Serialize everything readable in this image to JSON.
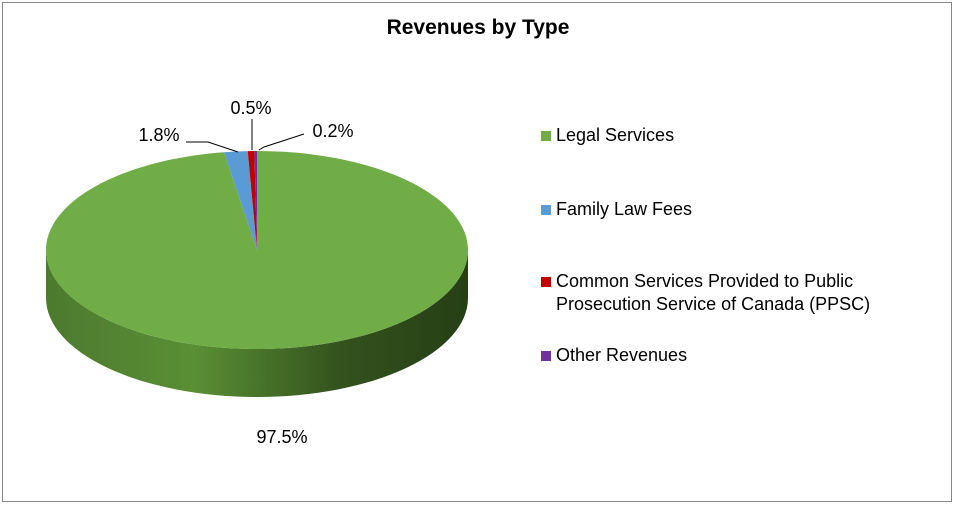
{
  "chart_data": {
    "type": "pie",
    "title": "Revenues by Type",
    "categories": [
      "Legal Services",
      "Family Law Fees",
      "Common Services Provided to Public Prosecution Service of Canada (PPSC)",
      "Other Revenues"
    ],
    "values": [
      97.5,
      1.8,
      0.5,
      0.2
    ],
    "data_labels": [
      "97.5%",
      "1.8%",
      "0.5%",
      "0.2%"
    ],
    "colors": [
      "#70AD47",
      "#5B9BD5",
      "#C00000",
      "#7030A0"
    ],
    "legend_position": "right",
    "style": "3d"
  },
  "legend": {
    "items": [
      {
        "lines": [
          "Legal Services"
        ],
        "color": "#70AD47"
      },
      {
        "lines": [
          "Family Law Fees"
        ],
        "color": "#5B9BD5"
      },
      {
        "lines": [
          "Common Services Provided to Public",
          "Prosecution Service of Canada (PPSC)"
        ],
        "color": "#C00000"
      },
      {
        "lines": [
          "Other Revenues"
        ],
        "color": "#7030A0"
      }
    ]
  }
}
